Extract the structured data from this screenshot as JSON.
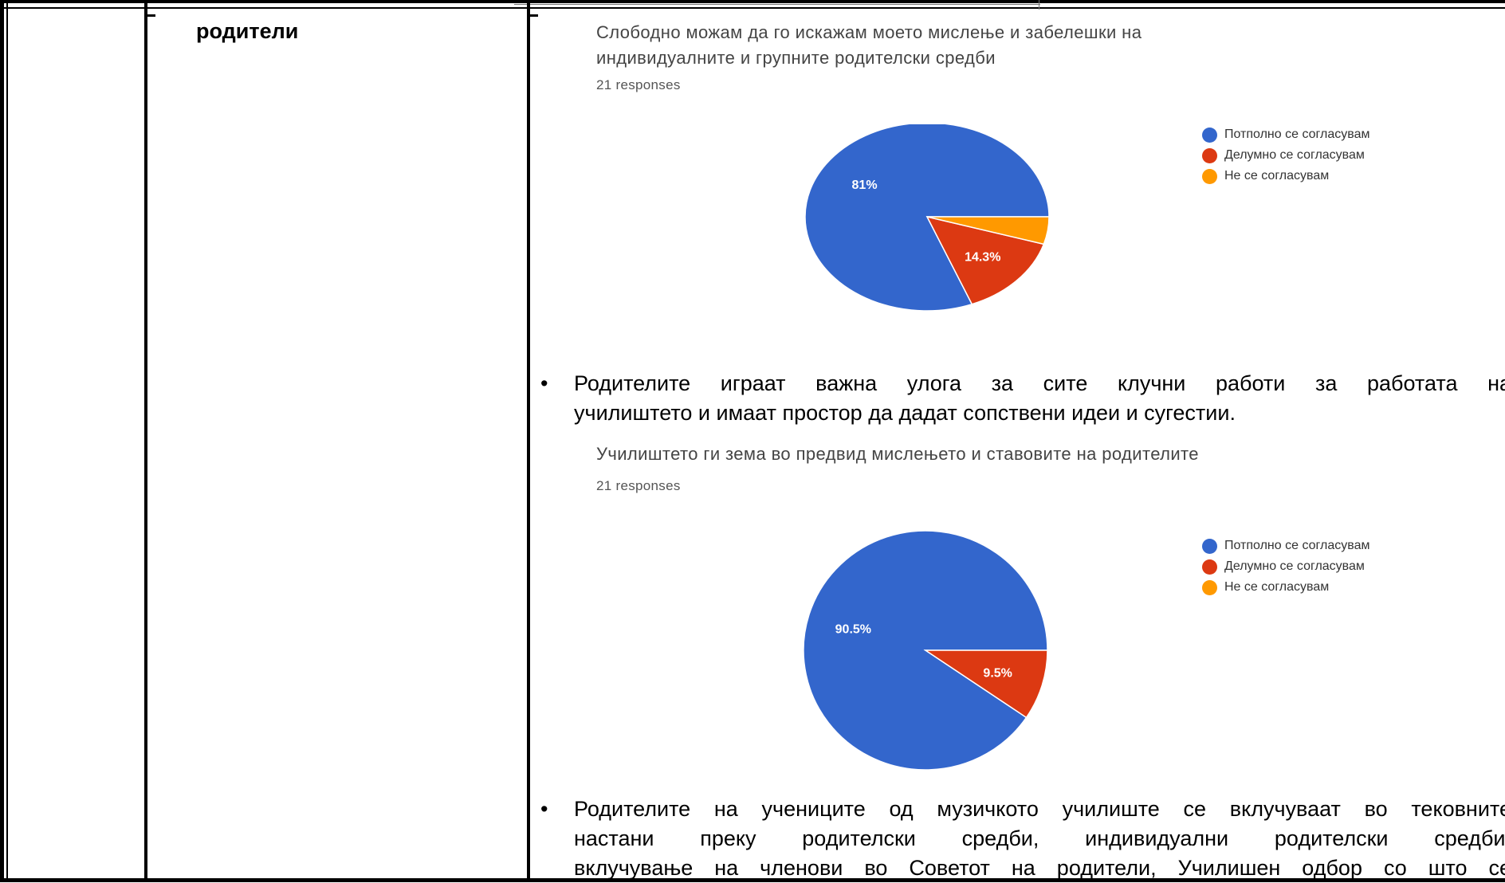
{
  "row_label": "родители",
  "chart_data": [
    {
      "type": "pie",
      "title": "Слободно можам да го искажам моето мислење и забелешки на индивидуалните и групните родителски средби",
      "title_lines": [
        "Слободно можам да го искажам моето мислење и забелешки на",
        "индивидуалните и групните родителски средби"
      ],
      "subtitle": "21 responses",
      "categories": [
        "Потполно се согласувам",
        "Делумно се согласувам",
        "Не се согласувам"
      ],
      "values": [
        81,
        14.3,
        4.7
      ],
      "data_labels": [
        "81%",
        "14.3%",
        ""
      ],
      "colors": [
        "#3366cc",
        "#dc3912",
        "#ff9900"
      ],
      "legend": "right"
    },
    {
      "type": "pie",
      "title": "Училиштето ги зема во предвид мислењето и ставовите на родителите",
      "title_lines": [
        "Училиштето ги зема во предвид мислењето и ставовите на родителите"
      ],
      "subtitle": "21 responses",
      "categories": [
        "Потполно се согласувам",
        "Делумно се согласувам",
        "Не се согласувам"
      ],
      "values": [
        90.5,
        9.5,
        0
      ],
      "data_labels": [
        "90.5%",
        "9.5%",
        ""
      ],
      "colors": [
        "#3366cc",
        "#dc3912",
        "#ff9900"
      ],
      "legend": "right"
    }
  ],
  "bullets": [
    {
      "glyph": "•",
      "lines": [
        "Родителите играат важна улога за сите клучни работи за работата на",
        "училиштето и имаат простор да дадат сопствени идеи и сугестии."
      ]
    },
    {
      "glyph": "•",
      "lines": [
        "Родителите на учениците од музичкото училиште се вклучуваат во тековните",
        "настани преку родителски средби, индивидуални родителски средби,",
        "вклучување на членови во Советот на родители, Училишен одбор со што се"
      ]
    }
  ]
}
